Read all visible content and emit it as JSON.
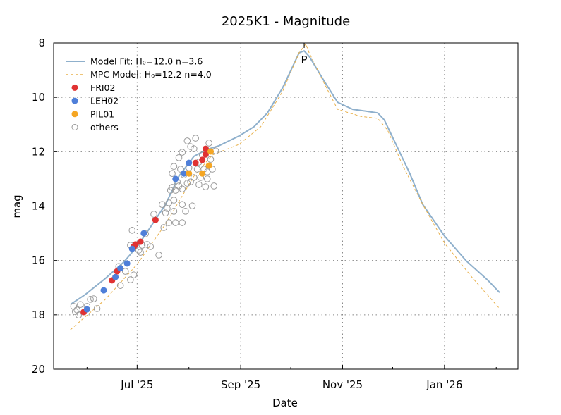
{
  "chart_data": {
    "type": "scatter",
    "title": "2025K1 - Magnitude",
    "xlabel": "Date",
    "ylabel": "mag",
    "xlim": [
      "2025-05-12",
      "2026-02-14"
    ],
    "ylim": [
      20,
      8
    ],
    "y_inverted": true,
    "grid": true,
    "legend_position": "top-left",
    "x_ticks": [
      {
        "date": "2025-07-01",
        "label": "Jul '25"
      },
      {
        "date": "2025-09-01",
        "label": "Sep '25"
      },
      {
        "date": "2025-11-01",
        "label": "Nov '25"
      },
      {
        "date": "2026-01-01",
        "label": "Jan '26"
      }
    ],
    "x_minor_ticks": [
      "2025-06-01",
      "2025-08-01",
      "2025-10-01",
      "2025-12-01",
      "2026-02-01"
    ],
    "y_ticks": [
      8,
      10,
      12,
      14,
      16,
      18,
      20
    ],
    "annotations": [
      {
        "text": "P",
        "date": "2025-10-09",
        "mag": 8.29
      }
    ],
    "series": [
      {
        "name": "Model Fit: H₀=12.0 n=3.6",
        "kind": "line",
        "color": "#8fb0cc",
        "points": [
          [
            "2025-05-22",
            17.62
          ],
          [
            "2025-05-31",
            17.25
          ],
          [
            "2025-06-12",
            16.66
          ],
          [
            "2025-06-23",
            16.06
          ],
          [
            "2025-07-01",
            15.49
          ],
          [
            "2025-07-09",
            14.77
          ],
          [
            "2025-07-18",
            13.94
          ],
          [
            "2025-07-26",
            12.9
          ],
          [
            "2025-08-04",
            12.17
          ],
          [
            "2025-08-12",
            11.91
          ],
          [
            "2025-08-19",
            11.78
          ],
          [
            "2025-08-31",
            11.42
          ],
          [
            "2025-09-09",
            11.08
          ],
          [
            "2025-09-17",
            10.57
          ],
          [
            "2025-09-26",
            9.66
          ],
          [
            "2025-10-02",
            8.88
          ],
          [
            "2025-10-06",
            8.36
          ],
          [
            "2025-10-09",
            8.29
          ],
          [
            "2025-10-12",
            8.49
          ],
          [
            "2025-10-21",
            9.4
          ],
          [
            "2025-10-29",
            10.18
          ],
          [
            "2025-11-07",
            10.44
          ],
          [
            "2025-11-15",
            10.51
          ],
          [
            "2025-11-22",
            10.57
          ],
          [
            "2025-11-26",
            10.83
          ],
          [
            "2025-12-02",
            11.6
          ],
          [
            "2025-12-11",
            12.77
          ],
          [
            "2025-12-19",
            13.94
          ],
          [
            "2026-01-01",
            15.1
          ],
          [
            "2026-01-14",
            16.01
          ],
          [
            "2026-01-27",
            16.73
          ],
          [
            "2026-02-03",
            17.18
          ]
        ]
      },
      {
        "name": "MPC Model: H₀=12.2 n=4.0",
        "kind": "dashed",
        "color": "#e8b04a",
        "points": [
          [
            "2025-05-22",
            18.55
          ],
          [
            "2025-06-12",
            17.43
          ],
          [
            "2025-07-01",
            16.14
          ],
          [
            "2025-07-18",
            14.66
          ],
          [
            "2025-08-04",
            12.9
          ],
          [
            "2025-08-15",
            12.12
          ],
          [
            "2025-08-31",
            11.73
          ],
          [
            "2025-09-13",
            11.08
          ],
          [
            "2025-09-26",
            9.79
          ],
          [
            "2025-10-06",
            8.36
          ],
          [
            "2025-10-10",
            8.03
          ],
          [
            "2025-10-12",
            8.36
          ],
          [
            "2025-10-21",
            9.48
          ],
          [
            "2025-10-29",
            10.44
          ],
          [
            "2025-11-12",
            10.7
          ],
          [
            "2025-11-22",
            10.77
          ],
          [
            "2025-11-28",
            11.21
          ],
          [
            "2025-12-07",
            12.51
          ],
          [
            "2025-12-19",
            13.94
          ],
          [
            "2026-01-01",
            15.36
          ],
          [
            "2026-01-18",
            16.66
          ],
          [
            "2026-02-03",
            17.77
          ]
        ]
      },
      {
        "name": "FRI02",
        "kind": "filled",
        "color": "#e03232",
        "points": [
          [
            "2025-05-30",
            17.9
          ],
          [
            "2025-06-16",
            16.73
          ],
          [
            "2025-06-19",
            16.4
          ],
          [
            "2025-06-29",
            15.49
          ],
          [
            "2025-06-30",
            15.41
          ],
          [
            "2025-07-03",
            15.31
          ],
          [
            "2025-07-12",
            14.51
          ],
          [
            "2025-08-05",
            12.41
          ],
          [
            "2025-08-09",
            12.3
          ],
          [
            "2025-08-11",
            11.89
          ],
          [
            "2025-08-11",
            12.1
          ]
        ]
      },
      {
        "name": "LEH02",
        "kind": "filled",
        "color": "#4f7fd9",
        "points": [
          [
            "2025-06-01",
            17.8
          ],
          [
            "2025-06-11",
            17.1
          ],
          [
            "2025-06-18",
            16.61
          ],
          [
            "2025-06-21",
            16.29
          ],
          [
            "2025-06-25",
            16.11
          ],
          [
            "2025-06-28",
            15.57
          ],
          [
            "2025-07-05",
            15.0
          ],
          [
            "2025-07-24",
            13.0
          ],
          [
            "2025-07-29",
            12.8
          ],
          [
            "2025-08-01",
            12.41
          ]
        ]
      },
      {
        "name": "PIL01",
        "kind": "filled",
        "color": "#f5a623",
        "points": [
          [
            "2025-08-01",
            12.8
          ],
          [
            "2025-08-09",
            12.8
          ],
          [
            "2025-08-13",
            12.51
          ],
          [
            "2025-08-14",
            11.99
          ]
        ]
      },
      {
        "name": "others",
        "kind": "open",
        "color": "#9a9a9a",
        "points": [
          [
            "2025-05-24",
            17.69
          ],
          [
            "2025-05-25",
            17.88
          ],
          [
            "2025-05-27",
            18.01
          ],
          [
            "2025-05-26",
            17.82
          ],
          [
            "2025-05-28",
            17.62
          ],
          [
            "2025-06-01",
            17.69
          ],
          [
            "2025-06-03",
            17.43
          ],
          [
            "2025-06-05",
            17.41
          ],
          [
            "2025-06-07",
            17.77
          ],
          [
            "2025-06-20",
            16.22
          ],
          [
            "2025-06-21",
            16.92
          ],
          [
            "2025-06-24",
            16.4
          ],
          [
            "2025-06-27",
            16.71
          ],
          [
            "2025-06-27",
            15.44
          ],
          [
            "2025-06-28",
            14.89
          ],
          [
            "2025-06-29",
            16.53
          ],
          [
            "2025-07-02",
            15.62
          ],
          [
            "2025-07-03",
            15.7
          ],
          [
            "2025-07-04",
            15.44
          ],
          [
            "2025-07-06",
            15.02
          ],
          [
            "2025-07-07",
            15.41
          ],
          [
            "2025-07-09",
            15.49
          ],
          [
            "2025-07-11",
            14.3
          ],
          [
            "2025-07-14",
            15.8
          ],
          [
            "2025-07-16",
            13.94
          ],
          [
            "2025-07-17",
            14.79
          ],
          [
            "2025-07-18",
            14.25
          ],
          [
            "2025-07-19",
            14.09
          ],
          [
            "2025-07-20",
            14.61
          ],
          [
            "2025-07-20",
            13.88
          ],
          [
            "2025-07-21",
            13.42
          ],
          [
            "2025-07-22",
            12.8
          ],
          [
            "2025-07-22",
            13.31
          ],
          [
            "2025-07-23",
            13.78
          ],
          [
            "2025-07-23",
            12.54
          ],
          [
            "2025-07-23",
            14.19
          ],
          [
            "2025-07-24",
            13.42
          ],
          [
            "2025-07-25",
            13.11
          ],
          [
            "2025-07-26",
            12.22
          ],
          [
            "2025-07-26",
            13.26
          ],
          [
            "2025-07-27",
            12.64
          ],
          [
            "2025-07-28",
            13.94
          ],
          [
            "2025-07-28",
            13.37
          ],
          [
            "2025-07-28",
            12.02
          ],
          [
            "2025-07-29",
            12.85
          ],
          [
            "2025-07-30",
            14.19
          ],
          [
            "2025-07-31",
            11.6
          ],
          [
            "2025-07-31",
            13.16
          ],
          [
            "2025-08-01",
            12.59
          ],
          [
            "2025-08-02",
            11.81
          ],
          [
            "2025-08-02",
            13.11
          ],
          [
            "2025-08-03",
            13.99
          ],
          [
            "2025-08-04",
            11.89
          ],
          [
            "2025-08-04",
            12.95
          ],
          [
            "2025-08-05",
            11.5
          ],
          [
            "2025-08-06",
            12.64
          ],
          [
            "2025-08-07",
            13.21
          ],
          [
            "2025-08-07",
            12.38
          ],
          [
            "2025-08-08",
            12.95
          ],
          [
            "2025-08-09",
            12.12
          ],
          [
            "2025-08-10",
            12.64
          ],
          [
            "2025-08-11",
            13.29
          ],
          [
            "2025-08-12",
            12.74
          ],
          [
            "2025-08-12",
            13.0
          ],
          [
            "2025-08-13",
            11.68
          ],
          [
            "2025-08-14",
            12.28
          ],
          [
            "2025-08-15",
            12.64
          ],
          [
            "2025-08-16",
            13.26
          ],
          [
            "2025-08-17",
            11.97
          ],
          [
            "2025-07-28",
            14.61
          ],
          [
            "2025-07-24",
            14.61
          ]
        ]
      }
    ]
  }
}
